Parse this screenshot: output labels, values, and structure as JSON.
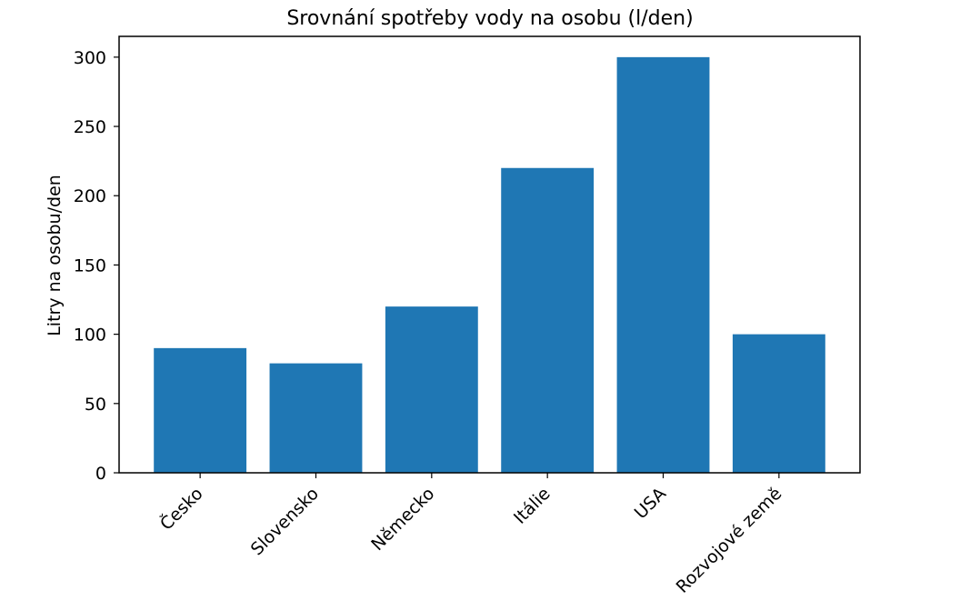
{
  "chart_data": {
    "type": "bar",
    "title": "Srovnání spotřeby vody na osobu (l/den)",
    "xlabel": "",
    "ylabel": "Litry na osobu/den",
    "categories": [
      "Česko",
      "Slovensko",
      "Německo",
      "Itálie",
      "USA",
      "Rozvojové země"
    ],
    "values": [
      90,
      79,
      120,
      220,
      300,
      100
    ],
    "ylim": [
      0,
      315
    ],
    "yticks": [
      0,
      50,
      100,
      150,
      200,
      250,
      300
    ],
    "bar_color": "#1f77b4",
    "grid": false
  }
}
